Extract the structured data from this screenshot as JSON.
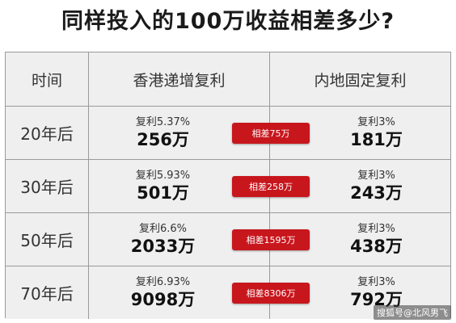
{
  "title": "同样投入的100万收益相差多少?",
  "table": {
    "headers": [
      "时间",
      "香港递增复利",
      "内地固定复利"
    ],
    "rows": [
      {
        "time": "20年后",
        "hk_rate": "复利5.37%",
        "hk_amount": "256万",
        "diff": "相差75万",
        "cn_rate": "复利3%",
        "cn_amount": "181万"
      },
      {
        "time": "30年后",
        "hk_rate": "复利5.93%",
        "hk_amount": "501万",
        "diff": "相差258万",
        "cn_rate": "复利3%",
        "cn_amount": "243万"
      },
      {
        "time": "50年后",
        "hk_rate": "复利6.6%",
        "hk_amount": "2033万",
        "diff": "相差1595万",
        "cn_rate": "复利3%",
        "cn_amount": "438万"
      },
      {
        "time": "70年后",
        "hk_rate": "复利6.93%",
        "hk_amount": "9098万",
        "diff": "相差8306万",
        "cn_rate": "复利3%",
        "cn_amount": "792万"
      }
    ]
  },
  "watermark": "搜狐号@北风男飞",
  "colors": {
    "badge": "#c8161d",
    "row_bg": "#efefef",
    "border": "#9a9a9a"
  }
}
